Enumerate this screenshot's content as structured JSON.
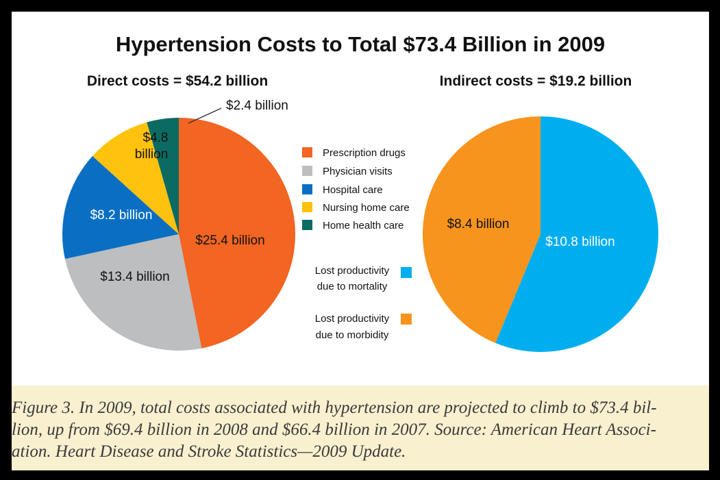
{
  "chart_data": [
    {
      "type": "pie",
      "title": "Direct costs = $54.2 billion",
      "unit": "billion USD",
      "total": 54.2,
      "slices": [
        {
          "label": "Prescription drugs",
          "value": 25.4,
          "value_label": "$25.4 billion",
          "color": "#f26522"
        },
        {
          "label": "Physician visits",
          "value": 13.4,
          "value_label": "$13.4 billion",
          "color": "#bcbec0"
        },
        {
          "label": "Hospital care",
          "value": 8.2,
          "value_label": "$8.2 billion",
          "color": "#0a6fc2"
        },
        {
          "label": "Nursing home care",
          "value": 4.8,
          "value_label": "$4.8 billion",
          "color": "#ffc20e"
        },
        {
          "label": "Home health care",
          "value": 2.4,
          "value_label": "$2.4 billion",
          "color": "#0b6b63"
        }
      ]
    },
    {
      "type": "pie",
      "title": "Indirect costs = $19.2 billion",
      "unit": "billion USD",
      "total": 19.2,
      "slices": [
        {
          "label": "Lost productivity due to mortality",
          "value": 10.8,
          "value_label": "$10.8 billion",
          "color": "#00aeef"
        },
        {
          "label": "Lost productivity due to morbidity",
          "value": 8.4,
          "value_label": "$8.4 billion",
          "color": "#f7941d"
        }
      ]
    }
  ],
  "figure": {
    "title": "Hypertension Costs to Total $73.4 Billion in 2009"
  },
  "legend": {
    "direct": [
      "Prescription drugs",
      "Physician visits",
      "Hospital care",
      "Nursing home care",
      "Home health care"
    ],
    "indirect": [
      {
        "line1": "Lost productivity",
        "line2": "due to mortality"
      },
      {
        "line1": "Lost productivity",
        "line2": "due to morbidity"
      }
    ]
  },
  "caption": {
    "line1": "Figure 3. In 2009, total costs associated with hypertension are projected to climb to $73.4 bil-",
    "line2": "lion, up from $69.4 billion in 2008 and $66.4 billion in 2007. Source: American Heart Associ-",
    "line3": "ation. Heart Disease and Stroke Statistics—2009 Update."
  }
}
